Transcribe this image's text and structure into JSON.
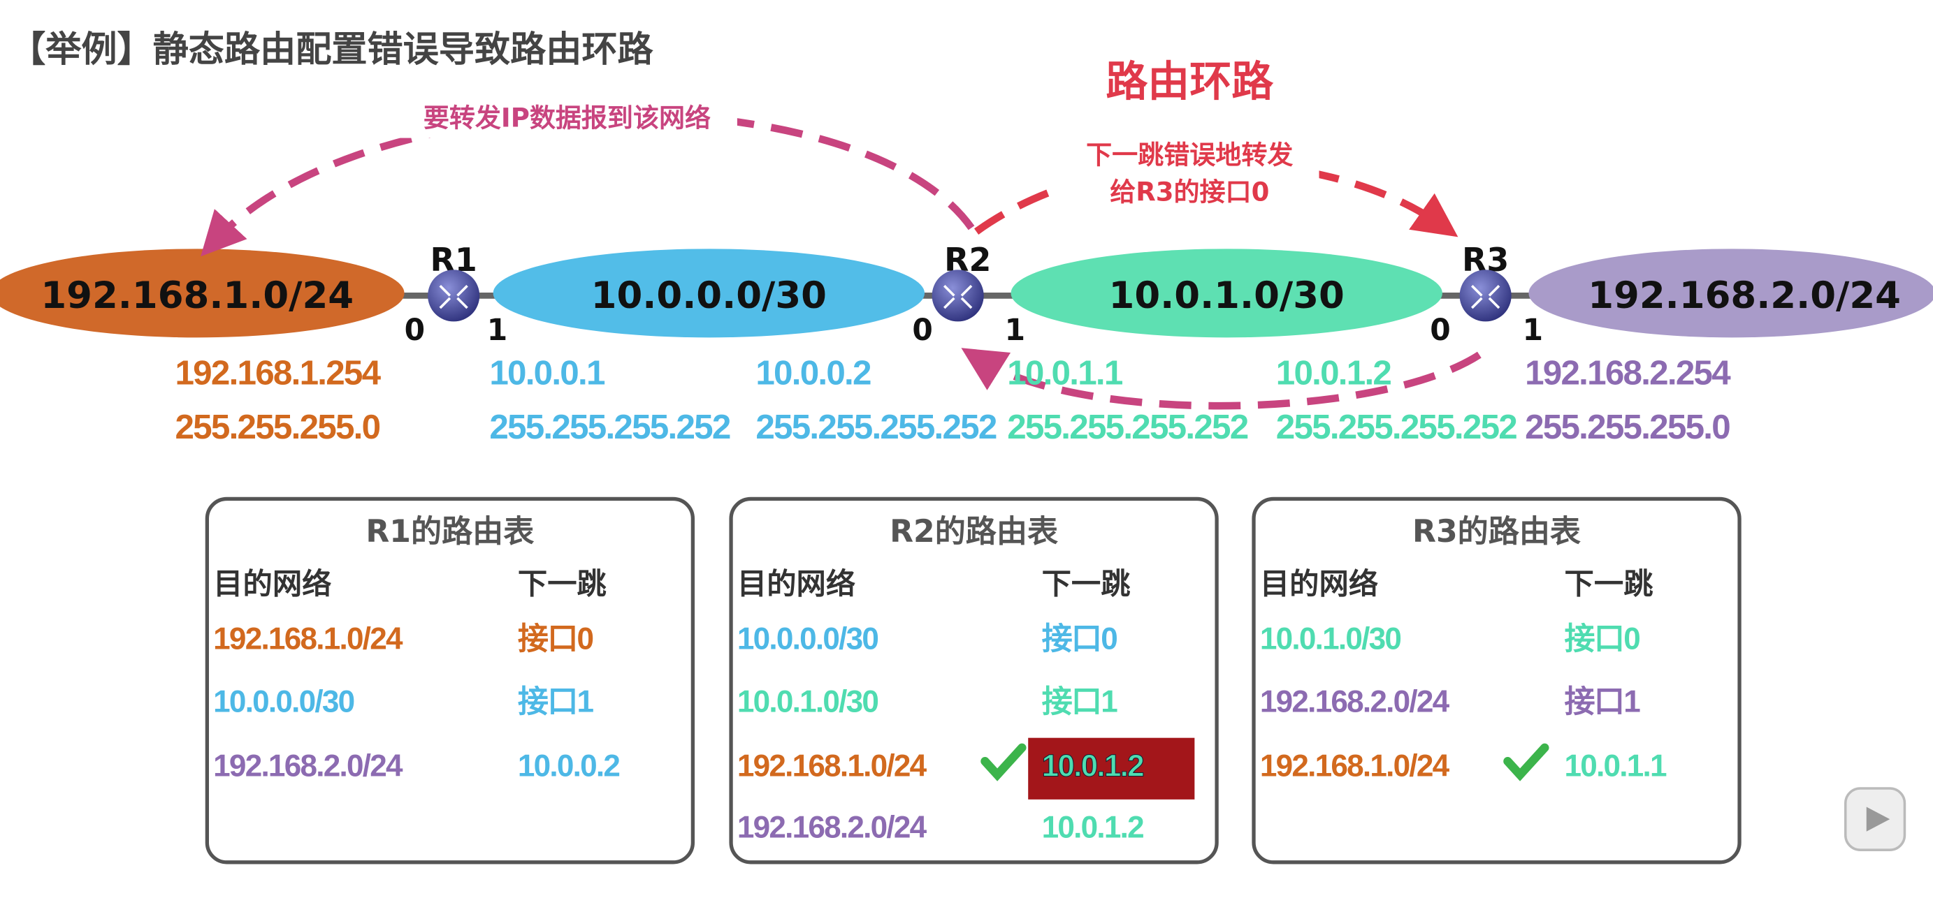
{
  "title": "【举例】静态路由配置错误导致路由环路",
  "loop_label": "路由环路",
  "arrow_top_label": "要转发IP数据报到该网络",
  "arrow_wrong_label": [
    "下一跳错误地转发",
    "给R3的接口0"
  ],
  "colors": {
    "orange": "#d2691e",
    "blue": "#4db8e6",
    "green": "#4fdcb0",
    "purple": "#8c6bb1",
    "pink": "#c8447f",
    "red": "#e0394a",
    "highlight": "#a3161a",
    "check": "#3cb44b"
  },
  "networks": [
    {
      "label": "192.168.1.0/24",
      "color": "#d0692a"
    },
    {
      "label": "10.0.0.0/30",
      "color": "#52bde8"
    },
    {
      "label": "10.0.1.0/30",
      "color": "#5ee0b2"
    },
    {
      "label": "192.168.2.0/24",
      "color": "#a99bc9"
    }
  ],
  "routers": [
    {
      "name": "R1",
      "if0": "0",
      "if1": "1"
    },
    {
      "name": "R2",
      "if0": "0",
      "if1": "1"
    },
    {
      "name": "R3",
      "if0": "0",
      "if1": "1"
    }
  ],
  "addresses": [
    {
      "ip": "192.168.1.254",
      "mask": "255.255.255.0",
      "color": "#d2691e"
    },
    {
      "ip": "10.0.0.1",
      "mask": "255.255.255.252",
      "color": "#4db8e6"
    },
    {
      "ip": "10.0.0.2",
      "mask": "255.255.255.252",
      "color": "#4db8e6"
    },
    {
      "ip": "10.0.1.1",
      "mask": "255.255.255.252",
      "color": "#4fdcb0"
    },
    {
      "ip": "10.0.1.2",
      "mask": "255.255.255.252",
      "color": "#4fdcb0"
    },
    {
      "ip": "192.168.2.254",
      "mask": "255.255.255.0",
      "color": "#8c6bb1"
    }
  ],
  "tables": [
    {
      "title": "R1的路由表",
      "col_dest": "目的网络",
      "col_next": "下一跳",
      "rows": [
        {
          "dest": "192.168.1.0/24",
          "next": "接口0",
          "dc": "#d2691e",
          "nc": "#d2691e"
        },
        {
          "dest": "10.0.0.0/30",
          "next": "接口1",
          "dc": "#4db8e6",
          "nc": "#4db8e6"
        },
        {
          "dest": "192.168.2.0/24",
          "next": "10.0.0.2",
          "dc": "#8c6bb1",
          "nc": "#4db8e6"
        }
      ]
    },
    {
      "title": "R2的路由表",
      "col_dest": "目的网络",
      "col_next": "下一跳",
      "rows": [
        {
          "dest": "10.0.0.0/30",
          "next": "接口0",
          "dc": "#4db8e6",
          "nc": "#4db8e6"
        },
        {
          "dest": "10.0.1.0/30",
          "next": "接口1",
          "dc": "#4fdcb0",
          "nc": "#4fdcb0"
        },
        {
          "dest": "192.168.1.0/24",
          "next": "10.0.1.2",
          "dc": "#d2691e",
          "nc": "#4fdcb0",
          "check": true,
          "highlight": true
        },
        {
          "dest": "192.168.2.0/24",
          "next": "10.0.1.2",
          "dc": "#8c6bb1",
          "nc": "#4fdcb0"
        }
      ]
    },
    {
      "title": "R3的路由表",
      "col_dest": "目的网络",
      "col_next": "下一跳",
      "rows": [
        {
          "dest": "10.0.1.0/30",
          "next": "接口0",
          "dc": "#4fdcb0",
          "nc": "#4fdcb0"
        },
        {
          "dest": "192.168.2.0/24",
          "next": "接口1",
          "dc": "#8c6bb1",
          "nc": "#8c6bb1"
        },
        {
          "dest": "192.168.1.0/24",
          "next": "10.0.1.1",
          "dc": "#d2691e",
          "nc": "#4fdcb0",
          "check": true
        }
      ]
    }
  ]
}
